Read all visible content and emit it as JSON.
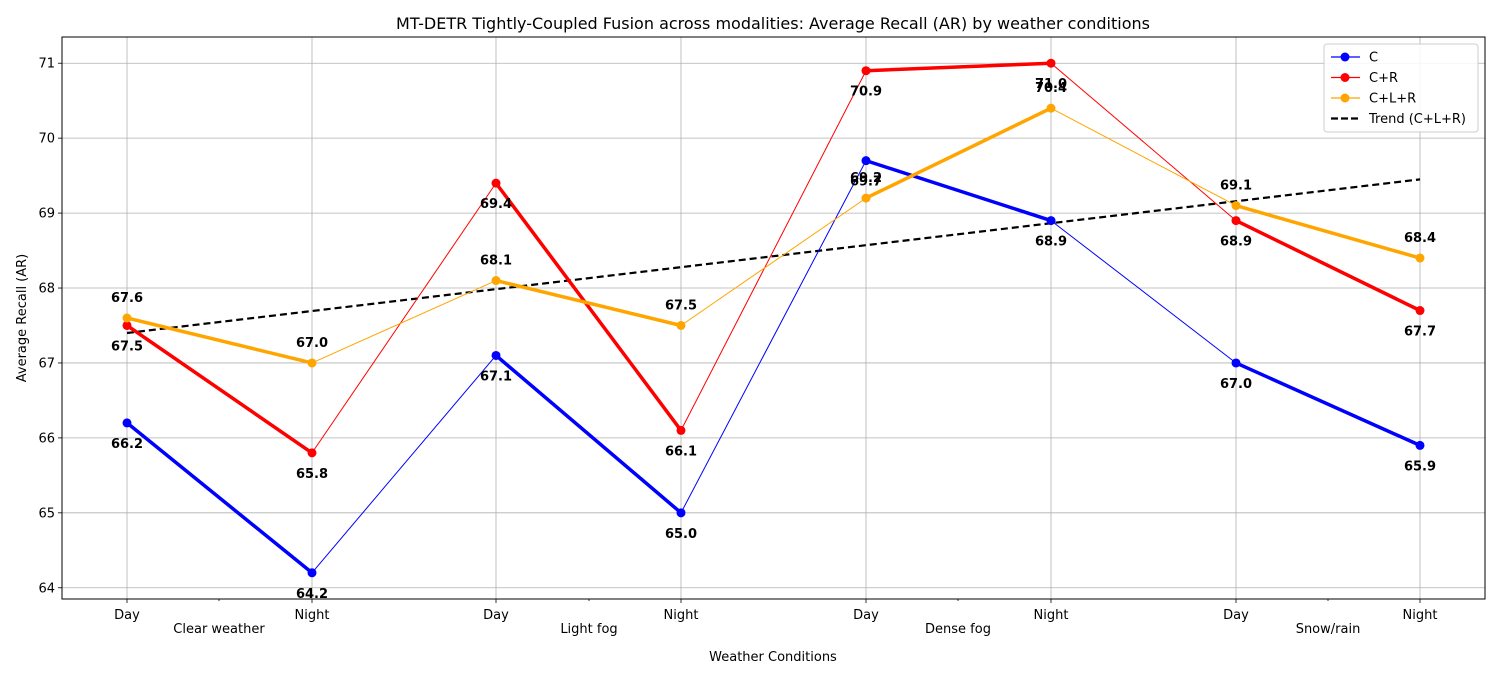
{
  "chart_data": {
    "type": "line",
    "title": "MT-DETR Tightly-Coupled Fusion across modalities: Average Recall (AR) by weather conditions",
    "xlabel": "Weather Conditions",
    "ylabel": "Average Recall (AR)",
    "categories": [
      "Day",
      "Night",
      "Day",
      "Night",
      "Day",
      "Night",
      "Day",
      "Night"
    ],
    "groups": [
      "Clear weather",
      "Light fog",
      "Dense fog",
      "Snow/rain"
    ],
    "ylim": [
      63.85,
      71.35
    ],
    "yticks": [
      64,
      65,
      66,
      67,
      68,
      69,
      70,
      71
    ],
    "grid": true,
    "legend_position": "top-right",
    "series": [
      {
        "name": "C",
        "color": "#0000ff",
        "values": [
          66.2,
          64.2,
          67.1,
          65.0,
          69.7,
          68.9,
          67.0,
          65.9
        ],
        "label_position": "below"
      },
      {
        "name": "C+R",
        "color": "#ff0000",
        "values": [
          67.5,
          65.8,
          69.4,
          66.1,
          70.9,
          71.0,
          68.9,
          67.7
        ],
        "label_position": "below"
      },
      {
        "name": "C+L+R",
        "color": "#ffa500",
        "values": [
          67.6,
          67.0,
          68.1,
          67.5,
          69.2,
          70.4,
          69.1,
          68.4
        ],
        "label_position": "above"
      }
    ],
    "trend": {
      "name": "Trend (C+L+R)",
      "color": "#000000",
      "style": "dashed",
      "start": 67.4,
      "end": 69.45
    }
  }
}
